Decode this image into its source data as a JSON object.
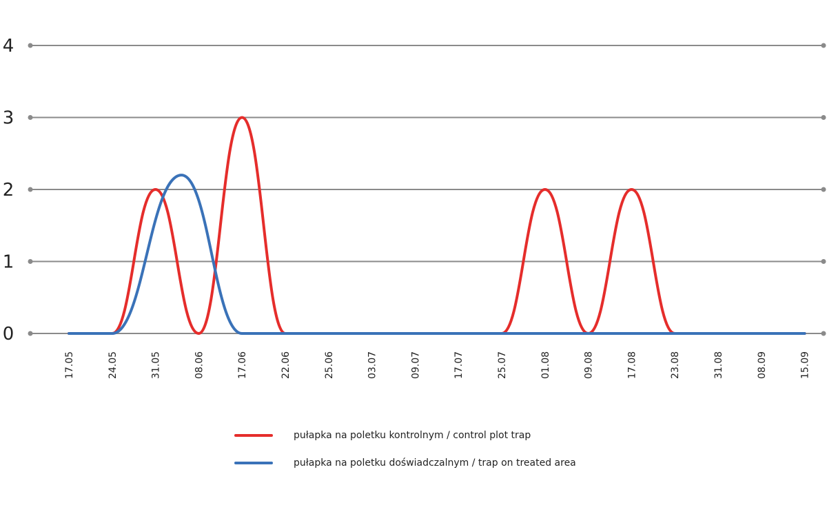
{
  "chart_data": {
    "type": "line",
    "categories": [
      "17.05",
      "24.05",
      "31.05",
      "08.06",
      "17.06",
      "22.06",
      "25.06",
      "03.07",
      "09.07",
      "17.07",
      "25.07",
      "01.08",
      "09.08",
      "17.08",
      "23.08",
      "31.08",
      "08.09",
      "15.09"
    ],
    "yticks": [
      "0",
      "1",
      "2",
      "3",
      "4"
    ],
    "ylim": [
      0,
      4
    ],
    "grid": true,
    "legend_position": "bottom",
    "series": [
      {
        "name": "pułapka na poletku kontrolnym / control plot trap",
        "color": "#e52d2b",
        "points": [
          [
            0,
            0
          ],
          [
            1,
            0
          ],
          [
            2,
            2
          ],
          [
            3,
            0
          ],
          [
            4,
            3
          ],
          [
            5,
            0
          ],
          [
            6,
            0
          ],
          [
            7,
            0
          ],
          [
            8,
            0
          ],
          [
            9,
            0
          ],
          [
            10,
            0
          ],
          [
            11,
            2
          ],
          [
            12,
            0
          ],
          [
            13,
            2
          ],
          [
            14,
            0
          ],
          [
            15,
            0
          ],
          [
            16,
            0
          ],
          [
            17,
            0
          ]
        ]
      },
      {
        "name": "pułapka na poletku doświadczalnym / trap on treated area",
        "color": "#3a72b8",
        "points": [
          [
            0,
            0
          ],
          [
            1,
            0
          ],
          [
            2.6,
            2.2
          ],
          [
            4,
            0
          ],
          [
            5,
            0
          ],
          [
            6,
            0
          ],
          [
            7,
            0
          ],
          [
            8,
            0
          ],
          [
            9,
            0
          ],
          [
            10,
            0
          ],
          [
            11,
            0
          ],
          [
            12,
            0
          ],
          [
            13,
            0
          ],
          [
            14,
            0
          ],
          [
            15,
            0
          ],
          [
            16,
            0
          ],
          [
            17,
            0
          ]
        ]
      }
    ],
    "colors": {
      "grid": "#8a8a8a",
      "axis_text": "#222222"
    }
  }
}
